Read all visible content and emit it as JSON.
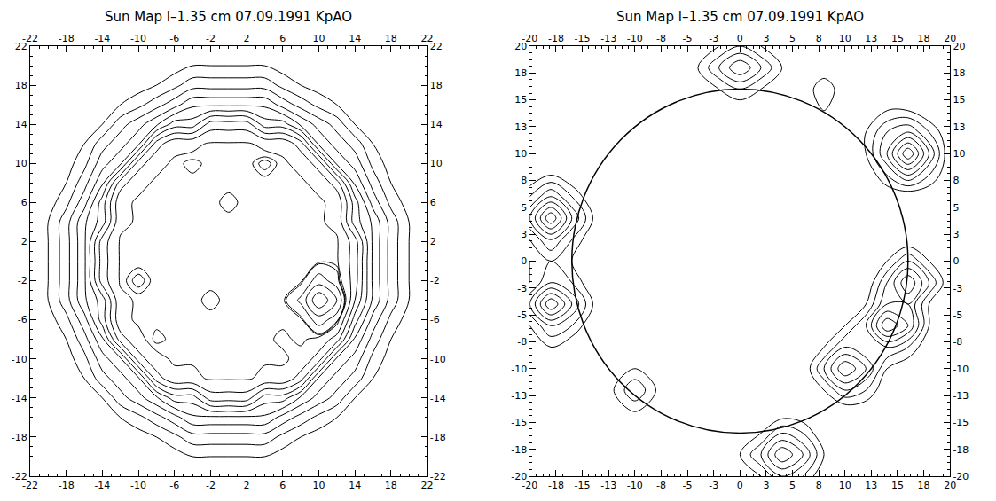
{
  "chart_data": [
    {
      "type": "contour",
      "title": "Sun Map l–1.35 cm 07.09.1991 KpAO",
      "color": "#000000",
      "xlim": [
        -22,
        22
      ],
      "ylim": [
        -22,
        22
      ],
      "xticks": [
        -22,
        -18,
        -14,
        -10,
        -6,
        -2,
        2,
        6,
        10,
        14,
        18,
        22
      ],
      "yticks": [
        -22,
        -18,
        -14,
        -10,
        -6,
        -2,
        2,
        6,
        10,
        14,
        18,
        22
      ],
      "x": [
        -22,
        -20,
        -18,
        -16,
        -14,
        -12,
        -10,
        -8,
        -6,
        -4,
        -2,
        0,
        2,
        4,
        6,
        8,
        10,
        12,
        14,
        16,
        18,
        20,
        22
      ],
      "y": [
        -22,
        -20,
        -18,
        -16,
        -14,
        -12,
        -10,
        -8,
        -6,
        -4,
        -2,
        0,
        2,
        4,
        6,
        8,
        10,
        12,
        14,
        16,
        18,
        20,
        22
      ],
      "levels": [
        10,
        20,
        30,
        40,
        50,
        60,
        70,
        80,
        90,
        100,
        102,
        103,
        110,
        120,
        130
      ],
      "z": [
        [
          0,
          0,
          0,
          0,
          0,
          0,
          0,
          0,
          0,
          2,
          2,
          2,
          2,
          2,
          0,
          0,
          0,
          0,
          0,
          0,
          0,
          0,
          0
        ],
        [
          0,
          0,
          0,
          0,
          0,
          0,
          2,
          5,
          5,
          10,
          10,
          10,
          10,
          10,
          5,
          5,
          2,
          0,
          0,
          0,
          0,
          0,
          0
        ],
        [
          0,
          0,
          0,
          0,
          0,
          2,
          5,
          10,
          17,
          26,
          26,
          26,
          26,
          26,
          17,
          10,
          5,
          2,
          0,
          0,
          0,
          0,
          0
        ],
        [
          0,
          0,
          0,
          0,
          5,
          10,
          17,
          26,
          36,
          48,
          48,
          48,
          48,
          48,
          36,
          26,
          17,
          10,
          5,
          0,
          0,
          0,
          0
        ],
        [
          0,
          0,
          0,
          5,
          10,
          26,
          36,
          48,
          65,
          65,
          85,
          85,
          85,
          65,
          65,
          48,
          36,
          26,
          10,
          5,
          0,
          0,
          0
        ],
        [
          0,
          0,
          2,
          10,
          26,
          36,
          48,
          85,
          98,
          98,
          101,
          101,
          101,
          98,
          98,
          85,
          48,
          36,
          26,
          10,
          2,
          0,
          0
        ],
        [
          0,
          2,
          5,
          17,
          36,
          48,
          85,
          98,
          101,
          101,
          101,
          101,
          101,
          101,
          101,
          98,
          85,
          48,
          36,
          17,
          5,
          2,
          0
        ],
        [
          0,
          5,
          10,
          26,
          48,
          85,
          98,
          103,
          101,
          101,
          101,
          101,
          101,
          101,
          99,
          101,
          98,
          85,
          48,
          26,
          10,
          5,
          0
        ],
        [
          0,
          5,
          17,
          36,
          65,
          98,
          101,
          101,
          101,
          101,
          101,
          101,
          101,
          101,
          101,
          101,
          115,
          105,
          65,
          36,
          17,
          5,
          0
        ],
        [
          2,
          10,
          26,
          48,
          65,
          98,
          101,
          101,
          101,
          101,
          103,
          101,
          101,
          101,
          101,
          112,
          140,
          120,
          80,
          48,
          26,
          10,
          2
        ],
        [
          2,
          10,
          26,
          48,
          85,
          101,
          104,
          101,
          101,
          101,
          101,
          101,
          101,
          101,
          101,
          101,
          115,
          105,
          85,
          48,
          26,
          10,
          2
        ],
        [
          2,
          10,
          26,
          48,
          85,
          101,
          101,
          101,
          101,
          101,
          101,
          101,
          101,
          101,
          101,
          101,
          101,
          101,
          85,
          48,
          26,
          10,
          2
        ],
        [
          2,
          10,
          26,
          48,
          85,
          101,
          101,
          101,
          101,
          101,
          101,
          101,
          101,
          101,
          101,
          101,
          101,
          101,
          85,
          48,
          26,
          10,
          2
        ],
        [
          2,
          10,
          26,
          48,
          65,
          98,
          101,
          101,
          102,
          101,
          101,
          101,
          101,
          102,
          101,
          101,
          101,
          98,
          65,
          48,
          26,
          10,
          2
        ],
        [
          0,
          5,
          17,
          36,
          65,
          98,
          101,
          101,
          101,
          101,
          101,
          99,
          101,
          101,
          101,
          101,
          101,
          98,
          65,
          36,
          17,
          5,
          0
        ],
        [
          0,
          5,
          10,
          26,
          48,
          85,
          98,
          101,
          101,
          101,
          101,
          101,
          101,
          101,
          101,
          101,
          98,
          85,
          48,
          26,
          10,
          5,
          0
        ],
        [
          0,
          2,
          5,
          17,
          36,
          48,
          85,
          98,
          101,
          103,
          101,
          101,
          101,
          104,
          101,
          98,
          85,
          48,
          36,
          17,
          5,
          2,
          0
        ],
        [
          0,
          0,
          2,
          10,
          26,
          36,
          48,
          85,
          98,
          98,
          101,
          101,
          101,
          98,
          98,
          85,
          48,
          36,
          26,
          10,
          2,
          0,
          0
        ],
        [
          0,
          0,
          0,
          5,
          10,
          26,
          36,
          48,
          65,
          65,
          85,
          85,
          85,
          65,
          65,
          48,
          36,
          26,
          10,
          5,
          0,
          0,
          0
        ],
        [
          0,
          0,
          0,
          0,
          5,
          10,
          17,
          26,
          36,
          48,
          48,
          48,
          48,
          48,
          36,
          26,
          17,
          10,
          5,
          0,
          0,
          0,
          0
        ],
        [
          0,
          0,
          0,
          0,
          0,
          2,
          5,
          10,
          17,
          26,
          26,
          26,
          26,
          26,
          17,
          10,
          5,
          2,
          0,
          0,
          0,
          0,
          0
        ],
        [
          0,
          0,
          0,
          0,
          0,
          0,
          2,
          5,
          5,
          10,
          10,
          10,
          10,
          10,
          5,
          5,
          2,
          0,
          0,
          0,
          0,
          0,
          0
        ],
        [
          0,
          0,
          0,
          0,
          0,
          0,
          0,
          0,
          0,
          2,
          2,
          2,
          2,
          2,
          0,
          0,
          0,
          0,
          0,
          0,
          0,
          0,
          0
        ]
      ]
    },
    {
      "type": "contour",
      "title": "Sun Map l–1.35 cm 07.09.1991 KpAO",
      "color": "#000000",
      "xlim": [
        -20,
        20
      ],
      "ylim": [
        -20,
        20
      ],
      "xticks": [
        -20,
        {
          "value": -17.5,
          "label": "-18"
        },
        -15,
        {
          "value": -12.5,
          "label": "-13"
        },
        -10,
        {
          "value": -7.5,
          "label": "-8"
        },
        -5,
        {
          "value": -2.5,
          "label": "-3"
        },
        0,
        {
          "value": 2.5,
          "label": "3"
        },
        5,
        {
          "value": 7.5,
          "label": "8"
        },
        10,
        {
          "value": 12.5,
          "label": "13"
        },
        15,
        {
          "value": 17.5,
          "label": "18"
        },
        20
      ],
      "yticks": [
        -20,
        {
          "value": -17.5,
          "label": "-18"
        },
        -15,
        {
          "value": -12.5,
          "label": "-13"
        },
        -10,
        {
          "value": -7.5,
          "label": "-8"
        },
        -5,
        {
          "value": -2.5,
          "label": "-3"
        },
        0,
        {
          "value": 2.5,
          "label": "3"
        },
        5,
        {
          "value": 7.5,
          "label": "8"
        },
        10,
        {
          "value": 12.5,
          "label": "13"
        },
        15,
        {
          "value": 17.5,
          "label": "18"
        },
        20
      ],
      "x": [
        -20,
        -18,
        -16,
        -14,
        -12,
        -10,
        -8,
        -6,
        -4,
        -2,
        0,
        2,
        4,
        6,
        8,
        10,
        12,
        14,
        16,
        18,
        20
      ],
      "y": [
        -20,
        -18,
        -16,
        -14,
        -12,
        -10,
        -8,
        -6,
        -4,
        -2,
        0,
        2,
        4,
        6,
        8,
        10,
        12,
        14,
        16,
        18,
        20
      ],
      "levels": [
        1,
        2,
        3,
        4,
        5,
        6,
        7
      ],
      "limb": {
        "center": [
          0,
          0
        ],
        "radius": 16
      },
      "z": [
        [
          0,
          0,
          0,
          0,
          0,
          0,
          0,
          0,
          0,
          0,
          0,
          1,
          3,
          2,
          0,
          0,
          0,
          0,
          0,
          0,
          0
        ],
        [
          0,
          0,
          0,
          0,
          0,
          0,
          0,
          0,
          0,
          0,
          1,
          3,
          6,
          4,
          1,
          0,
          0,
          0,
          0,
          0,
          0
        ],
        [
          0,
          0,
          0,
          0,
          0,
          0,
          0,
          0,
          0,
          0,
          0,
          1,
          3,
          2,
          0,
          0,
          0,
          0,
          0,
          0,
          0
        ],
        [
          0,
          0,
          0,
          0,
          0,
          1,
          0,
          0,
          0,
          0,
          0,
          0,
          0,
          0,
          0,
          0,
          0,
          0,
          0,
          0,
          0
        ],
        [
          0,
          0,
          0,
          0,
          1,
          3,
          1,
          0,
          0,
          0,
          0,
          0,
          0,
          0,
          1,
          3,
          2,
          0,
          0,
          0,
          0
        ],
        [
          0,
          0,
          0,
          0,
          0,
          1,
          0,
          0,
          0,
          0,
          0,
          0,
          0,
          0,
          3,
          6,
          4,
          1,
          0,
          0,
          0
        ],
        [
          0,
          1,
          0,
          0,
          0,
          0,
          0,
          0,
          0,
          0,
          0,
          0,
          0,
          0,
          1,
          3,
          2,
          3,
          2,
          0,
          0
        ],
        [
          1,
          3,
          2,
          0,
          0,
          0,
          0,
          0,
          0,
          0,
          0,
          0,
          0,
          0,
          0,
          1,
          3,
          7,
          5,
          1,
          0
        ],
        [
          3,
          7,
          4,
          1,
          0,
          0,
          0,
          0,
          0,
          0,
          0,
          0,
          0,
          0,
          0,
          0,
          1,
          4,
          4,
          1,
          0
        ],
        [
          1,
          3,
          2,
          0,
          0,
          0,
          0,
          0,
          0,
          0,
          0,
          0,
          0,
          0,
          0,
          0,
          0,
          3,
          6,
          3,
          0
        ],
        [
          1,
          2,
          1,
          0,
          0,
          0,
          0,
          0,
          0,
          0,
          0,
          0,
          0,
          0,
          0,
          0,
          0,
          1,
          3,
          1,
          0
        ],
        [
          2,
          4,
          2,
          0,
          0,
          0,
          0,
          0,
          0,
          0,
          0,
          0,
          0,
          0,
          0,
          0,
          0,
          0,
          0,
          0,
          0
        ],
        [
          4,
          8,
          4,
          1,
          0,
          0,
          0,
          0,
          0,
          0,
          0,
          0,
          0,
          0,
          0,
          0,
          0,
          0,
          0,
          0,
          0
        ],
        [
          2,
          4,
          2,
          0,
          0,
          0,
          0,
          0,
          0,
          0,
          0,
          0,
          0,
          0,
          0,
          0,
          0,
          0,
          0,
          0,
          0
        ],
        [
          0,
          1,
          0,
          0,
          0,
          0,
          0,
          0,
          0,
          0,
          0,
          0,
          0,
          0,
          0,
          0,
          0,
          2,
          4,
          2,
          0
        ],
        [
          0,
          0,
          0,
          0,
          0,
          0,
          0,
          0,
          0,
          0,
          0,
          0,
          0,
          0,
          0,
          0,
          1,
          4,
          8,
          4,
          0
        ],
        [
          0,
          0,
          0,
          0,
          0,
          0,
          0,
          0,
          0,
          0,
          0,
          0,
          0,
          0,
          0,
          0,
          1,
          3,
          4,
          2,
          0
        ],
        [
          0,
          0,
          0,
          0,
          0,
          0,
          0,
          0,
          0,
          0,
          0,
          0,
          0,
          0,
          1,
          0,
          0,
          1,
          1,
          0,
          0
        ],
        [
          0,
          0,
          0,
          0,
          0,
          0,
          0,
          0,
          0,
          1,
          2,
          1,
          0,
          0,
          2,
          0,
          0,
          0,
          0,
          0,
          0
        ],
        [
          0,
          0,
          0,
          0,
          0,
          0,
          0,
          0,
          1,
          3,
          5,
          3,
          1,
          0,
          0,
          0,
          0,
          0,
          0,
          0,
          0
        ],
        [
          0,
          0,
          0,
          0,
          0,
          0,
          0,
          0,
          0,
          1,
          2,
          1,
          0,
          0,
          0,
          0,
          0,
          0,
          0,
          0,
          0
        ]
      ]
    }
  ]
}
